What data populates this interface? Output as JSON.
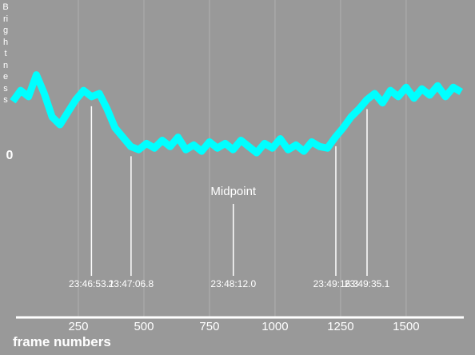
{
  "chart_data": {
    "type": "line",
    "y_label": "Brightness",
    "x_label": "frame numbers",
    "x": [
      0,
      30,
      60,
      90,
      120,
      150,
      180,
      210,
      240,
      270,
      300,
      330,
      360,
      390,
      420,
      450,
      480,
      510,
      540,
      570,
      600,
      630,
      660,
      690,
      720,
      750,
      780,
      810,
      840,
      870,
      900,
      930,
      960,
      990,
      1020,
      1050,
      1080,
      1110,
      1140,
      1170,
      1200,
      1230,
      1260,
      1290,
      1320,
      1350,
      1380,
      1410,
      1440,
      1470,
      1500,
      1530,
      1560,
      1590,
      1620,
      1650,
      1680,
      1710
    ],
    "series": [
      {
        "color": "#00ffff",
        "values": [
          0.35,
          0.42,
          0.38,
          0.52,
          0.4,
          0.25,
          0.2,
          0.28,
          0.36,
          0.42,
          0.38,
          0.4,
          0.3,
          0.18,
          0.12,
          0.06,
          0.04,
          0.08,
          0.05,
          0.1,
          0.06,
          0.12,
          0.04,
          0.07,
          0.03,
          0.09,
          0.05,
          0.08,
          0.04,
          0.1,
          0.06,
          0.02,
          0.08,
          0.05,
          0.11,
          0.04,
          0.07,
          0.03,
          0.09,
          0.06,
          0.05,
          0.12,
          0.18,
          0.25,
          0.3,
          0.36,
          0.4,
          0.34,
          0.42,
          0.38,
          0.44,
          0.37,
          0.43,
          0.39,
          0.45,
          0.38,
          0.44,
          0.41
        ]
      }
    ],
    "xlim": [
      0,
      1720
    ],
    "xticks": [
      250,
      500,
      750,
      1000,
      1250,
      1500
    ],
    "ylim": [
      -1,
      1
    ],
    "yticks": [
      0
    ],
    "grid": true,
    "midpoint_label": "Midpoint",
    "markers": [
      {
        "x": 300,
        "label": "23:46:53.1"
      },
      {
        "x": 451,
        "label": "23:47:06.8"
      },
      {
        "x": 841,
        "label": "23:48:12.0"
      },
      {
        "x": 1232,
        "label": "23:49:16.3"
      },
      {
        "x": 1351,
        "label": "23:49:35.1"
      }
    ]
  }
}
